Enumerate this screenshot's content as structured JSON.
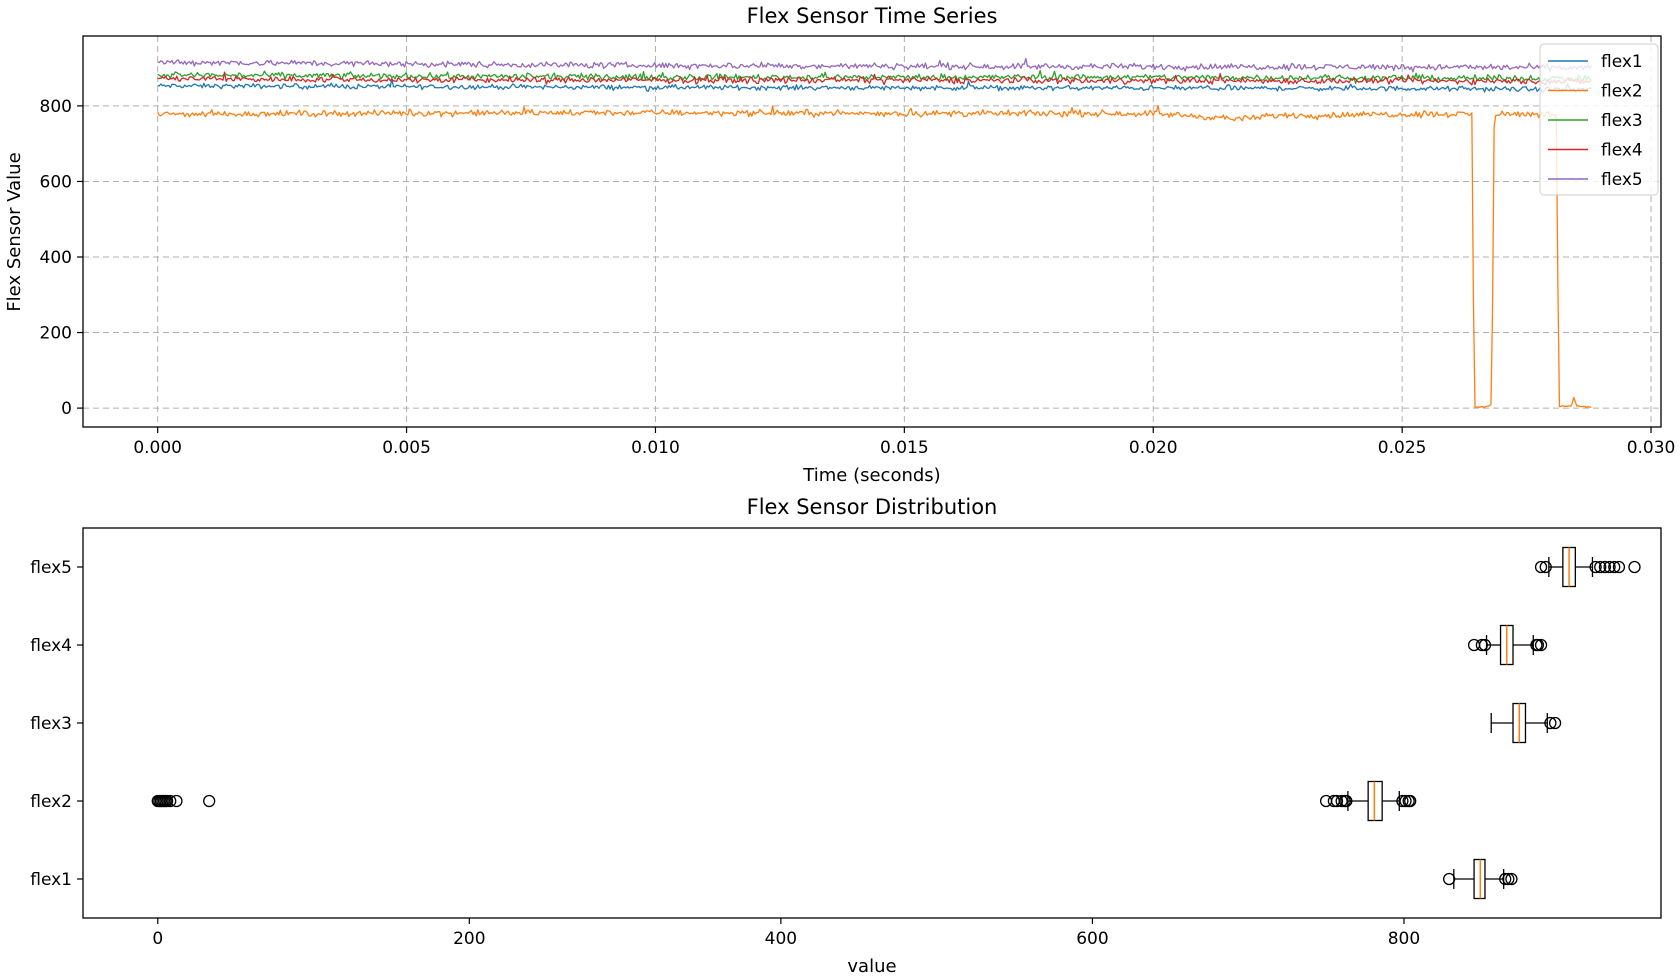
{
  "chart_data": [
    {
      "type": "line",
      "title": "Flex Sensor Time Series",
      "xlabel": "Time (seconds)",
      "ylabel": "Flex Sensor Value",
      "xlim": [
        -0.0015,
        0.0302
      ],
      "ylim": [
        -50,
        985
      ],
      "xticks": [
        0.0,
        0.005,
        0.01,
        0.015,
        0.02,
        0.025,
        0.03
      ],
      "xtick_labels": [
        "0.000",
        "0.005",
        "0.010",
        "0.015",
        "0.020",
        "0.025",
        "0.030"
      ],
      "yticks": [
        0,
        200,
        400,
        600,
        800
      ],
      "ytick_labels": [
        "0",
        "200",
        "400",
        "600",
        "800"
      ],
      "grid": true,
      "legend_position": "top-right",
      "series": [
        {
          "name": "flex1",
          "color": "#1f77b4",
          "mean": 848,
          "noise": 4,
          "points": [
            [
              0.0,
              853
            ],
            [
              0.005,
              851
            ],
            [
              0.01,
              849
            ],
            [
              0.015,
              848
            ],
            [
              0.02,
              847
            ],
            [
              0.025,
              846
            ],
            [
              0.0288,
              843
            ]
          ]
        },
        {
          "name": "flex2",
          "color": "#ff7f0e",
          "mean": 780,
          "noise": 5,
          "points": [
            [
              0.0,
              778
            ],
            [
              0.005,
              781
            ],
            [
              0.01,
              782
            ],
            [
              0.015,
              780
            ],
            [
              0.02,
              780
            ],
            [
              0.0218,
              765
            ],
            [
              0.0225,
              775
            ],
            [
              0.0235,
              775
            ],
            [
              0.0245,
              778
            ],
            [
              0.0264,
              778
            ],
            [
              0.02645,
              3
            ],
            [
              0.0267,
              3
            ],
            [
              0.0268,
              10
            ],
            [
              0.02685,
              778
            ],
            [
              0.0281,
              778
            ],
            [
              0.02815,
              5
            ],
            [
              0.0284,
              5
            ],
            [
              0.02845,
              30
            ],
            [
              0.0285,
              5
            ],
            [
              0.0288,
              3
            ]
          ]
        },
        {
          "name": "flex3",
          "color": "#2ca02c",
          "mean": 876,
          "noise": 5,
          "points": [
            [
              0.0,
              882
            ],
            [
              0.005,
              879
            ],
            [
              0.01,
              876
            ],
            [
              0.015,
              876
            ],
            [
              0.02,
              876
            ],
            [
              0.025,
              874
            ],
            [
              0.0288,
              872
            ]
          ]
        },
        {
          "name": "flex4",
          "color": "#d62728",
          "mean": 868,
          "noise": 5,
          "points": [
            [
              0.0,
              872
            ],
            [
              0.005,
              869
            ],
            [
              0.01,
              868
            ],
            [
              0.015,
              868
            ],
            [
              0.02,
              867
            ],
            [
              0.025,
              866
            ],
            [
              0.0288,
              865
            ]
          ]
        },
        {
          "name": "flex5",
          "color": "#9467bd",
          "mean": 906,
          "noise": 5,
          "points": [
            [
              0.0,
              916
            ],
            [
              0.005,
              911
            ],
            [
              0.01,
              907
            ],
            [
              0.015,
              905
            ],
            [
              0.02,
              904
            ],
            [
              0.025,
              903
            ],
            [
              0.0288,
              901
            ]
          ]
        }
      ]
    },
    {
      "type": "box",
      "title": "Flex Sensor Distribution",
      "xlabel": "value",
      "ylabel": "",
      "xlim": [
        -48,
        965
      ],
      "xticks": [
        0,
        200,
        400,
        600,
        800
      ],
      "xtick_labels": [
        "0",
        "200",
        "400",
        "600",
        "800"
      ],
      "grid": false,
      "categories": [
        "flex1",
        "flex2",
        "flex3",
        "flex4",
        "flex5"
      ],
      "median_color": "#ff7f0e",
      "boxes": [
        {
          "name": "flex1",
          "whisker_low": 832,
          "q1": 845,
          "median": 849,
          "q3": 852,
          "whisker_high": 864,
          "outliers": [
            829,
            865,
            867,
            869
          ]
        },
        {
          "name": "flex2",
          "whisker_low": 764,
          "q1": 777,
          "median": 781,
          "q3": 786,
          "whisker_high": 797,
          "outliers": [
            0,
            1,
            2,
            3,
            4,
            5,
            6,
            8,
            12,
            33,
            750,
            755,
            757,
            760,
            762,
            763,
            799,
            801,
            803,
            804
          ]
        },
        {
          "name": "flex3",
          "whisker_low": 856,
          "q1": 870,
          "median": 874,
          "q3": 878,
          "whisker_high": 892,
          "outliers": [
            894,
            897
          ]
        },
        {
          "name": "flex4",
          "whisker_low": 853,
          "q1": 862,
          "median": 866,
          "q3": 870,
          "whisker_high": 883,
          "outliers": [
            845,
            850,
            852,
            885,
            886,
            888
          ]
        },
        {
          "name": "flex5",
          "whisker_low": 893,
          "q1": 902,
          "median": 906,
          "q3": 910,
          "whisker_high": 921,
          "outliers": [
            888,
            891,
            923,
            926,
            929,
            932,
            935,
            938,
            948
          ]
        }
      ]
    }
  ]
}
